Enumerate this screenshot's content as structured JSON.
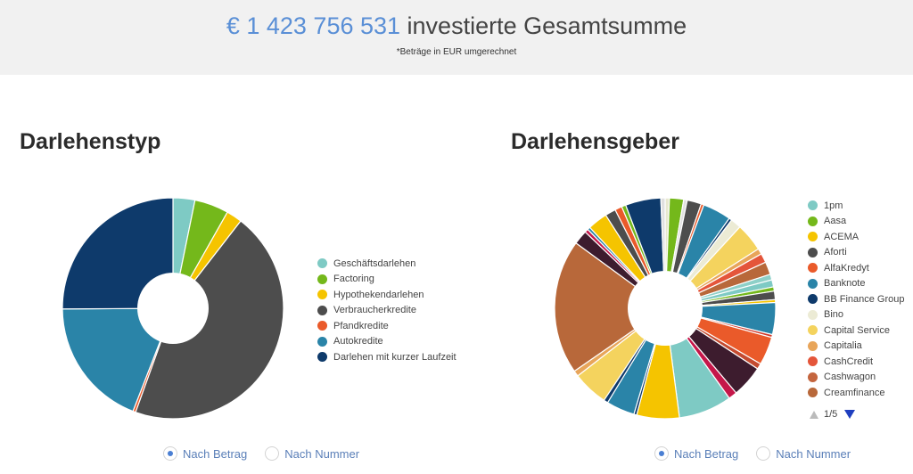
{
  "header": {
    "total_amount": "€ 1 423 756 531",
    "total_label": "investierte Gesamtsumme",
    "note": "*Beträge in EUR umgerechnet"
  },
  "chart_data": [
    {
      "type": "pie",
      "title": "Darlehenstyp",
      "donut": true,
      "categories": [
        "Geschäftsdarlehen",
        "Factoring",
        "Hypothekendarlehen",
        "Verbraucherkredite",
        "Pfandkredite",
        "Autokredite",
        "Darlehen mit kurzer Laufzeit"
      ],
      "values": [
        3.2,
        5.0,
        2.3,
        45.0,
        0.4,
        19.0,
        25.1
      ],
      "colors": [
        "#7ecac4",
        "#74b81b",
        "#f5c400",
        "#4d4d4d",
        "#ea5a2a",
        "#2a84a8",
        "#0e3a6b"
      ],
      "legend_position": "right"
    },
    {
      "type": "pie",
      "title": "Darlehensgeber",
      "donut": true,
      "legend_position": "right",
      "legend_page": "1/5",
      "categories": [
        "1pm",
        "Aasa",
        "ACEMA",
        "Aforti",
        "AlfaKredyt",
        "Banknote",
        "BB Finance Group",
        "Bino",
        "Capital Service",
        "Capitalia",
        "CashCredit",
        "Cashwagon",
        "Creamfinance"
      ],
      "slices": [
        {
          "label": "",
          "value": 0.6,
          "color": "#e8e8d0"
        },
        {
          "label": "Aasa",
          "value": 2.0,
          "color": "#74b81b"
        },
        {
          "label": "",
          "value": 0.5,
          "color": "#e0e0e0"
        },
        {
          "label": "",
          "value": 2.0,
          "color": "#4d4d4d"
        },
        {
          "label": "",
          "value": 0.4,
          "color": "#ea5a2a"
        },
        {
          "label": "",
          "value": 4.0,
          "color": "#2a84a8"
        },
        {
          "label": "",
          "value": 0.4,
          "color": "#0e3a6b"
        },
        {
          "label": "",
          "value": 1.5,
          "color": "#ecebd5"
        },
        {
          "label": "",
          "value": 4.0,
          "color": "#f4d35e"
        },
        {
          "label": "",
          "value": 0.8,
          "color": "#e8a55a"
        },
        {
          "label": "",
          "value": 1.3,
          "color": "#e4553a"
        },
        {
          "label": "",
          "value": 1.8,
          "color": "#b8683a"
        },
        {
          "label": "",
          "value": 0.8,
          "color": "#8ed0c8"
        },
        {
          "label": "",
          "value": 1.0,
          "color": "#7ecac4"
        },
        {
          "label": "",
          "value": 0.6,
          "color": "#74b81b"
        },
        {
          "label": "",
          "value": 1.2,
          "color": "#4d4d4d"
        },
        {
          "label": "",
          "value": 0.4,
          "color": "#f5c400"
        },
        {
          "label": "",
          "value": 4.5,
          "color": "#2a84a8"
        },
        {
          "label": "",
          "value": 0.4,
          "color": "#d23a2a"
        },
        {
          "label": "",
          "value": 4.0,
          "color": "#ea5a2a"
        },
        {
          "label": "",
          "value": 0.8,
          "color": "#c44b30"
        },
        {
          "label": "",
          "value": 4.5,
          "color": "#3d1c2e"
        },
        {
          "label": "",
          "value": 1.2,
          "color": "#c5174a"
        },
        {
          "label": "",
          "value": 7.5,
          "color": "#7ecac4"
        },
        {
          "label": "",
          "value": 6.0,
          "color": "#f5c400"
        },
        {
          "label": "",
          "value": 0.4,
          "color": "#0e3a6b"
        },
        {
          "label": "",
          "value": 4.0,
          "color": "#2a84a8"
        },
        {
          "label": "",
          "value": 0.6,
          "color": "#0e3a6b"
        },
        {
          "label": "",
          "value": 5.0,
          "color": "#f4d35e"
        },
        {
          "label": "",
          "value": 0.8,
          "color": "#e8a55a"
        },
        {
          "label": "",
          "value": 19.0,
          "color": "#b8683a"
        },
        {
          "label": "",
          "value": 2.0,
          "color": "#3d1c2e"
        },
        {
          "label": "",
          "value": 0.5,
          "color": "#c5174a"
        },
        {
          "label": "",
          "value": 0.4,
          "color": "#2a84a8"
        },
        {
          "label": "",
          "value": 2.8,
          "color": "#f5c400"
        },
        {
          "label": "",
          "value": 1.5,
          "color": "#4d4d4d"
        },
        {
          "label": "",
          "value": 1.0,
          "color": "#ea5a2a"
        },
        {
          "label": "",
          "value": 0.6,
          "color": "#74b81b"
        },
        {
          "label": "",
          "value": 5.0,
          "color": "#0e3a6b"
        },
        {
          "label": "",
          "value": 0.6,
          "color": "#e0e0e0"
        }
      ]
    }
  ],
  "legend_colors_right": [
    "#7ecac4",
    "#74b81b",
    "#f5c400",
    "#4d4d4d",
    "#ea5a2a",
    "#2a84a8",
    "#0e3a6b",
    "#ecebd5",
    "#f4d35e",
    "#e8a55a",
    "#e4553a",
    "#c4653e",
    "#b8683a"
  ],
  "radio_options": {
    "by_amount": "Nach Betrag",
    "by_number": "Nach Nummer",
    "selected": "by_amount"
  }
}
